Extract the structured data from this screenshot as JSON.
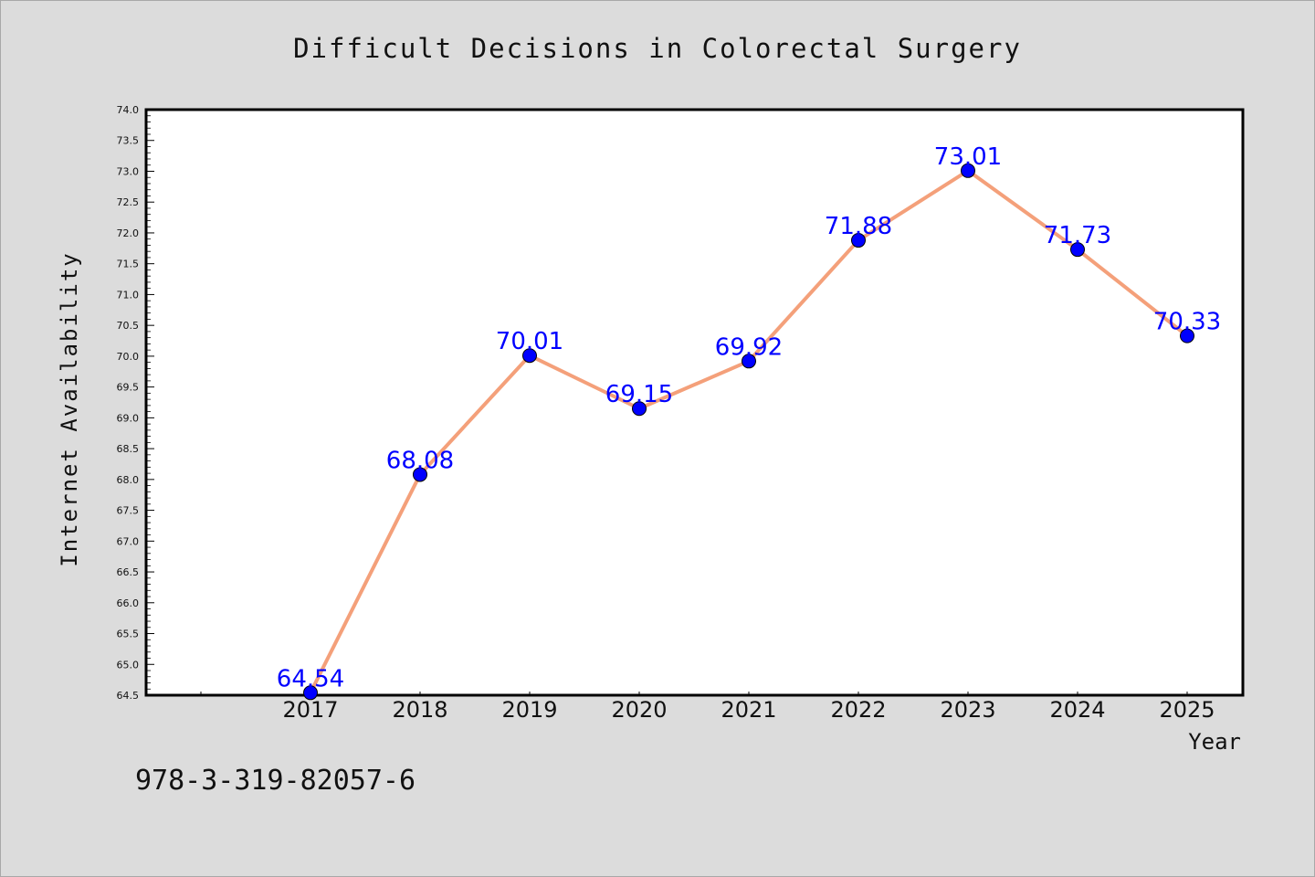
{
  "chart_data": {
    "type": "line",
    "title": "Difficult Decisions in Colorectal Surgery",
    "xlabel": "Year",
    "ylabel": "Internet Availability",
    "x": [
      "2017",
      "2018",
      "2019",
      "2020",
      "2021",
      "2022",
      "2023",
      "2024",
      "2025"
    ],
    "series": [
      {
        "values": [
          64.54,
          68.08,
          70.01,
          69.15,
          69.92,
          71.88,
          73.01,
          71.73,
          70.33
        ],
        "data_labels": [
          "64.54",
          "68.08",
          "70.01",
          "69.15",
          "69.92",
          "71.88",
          "73.01",
          "71.73",
          "70.33"
        ],
        "line_color": "#f4a07a",
        "marker_color": "#0000ff"
      }
    ],
    "ylim": [
      64.5,
      74.0
    ],
    "yticks": [
      "64.5",
      "65.0",
      "65.5",
      "66.0",
      "66.5",
      "67.0",
      "67.5",
      "68.0",
      "68.5",
      "69.0",
      "69.5",
      "70.0",
      "70.5",
      "71.0",
      "71.5",
      "72.0",
      "72.5",
      "73.0",
      "73.5",
      "74.0"
    ],
    "grid": false,
    "legend": "none"
  },
  "footer": {
    "isbn": "978-3-319-82057-6"
  }
}
